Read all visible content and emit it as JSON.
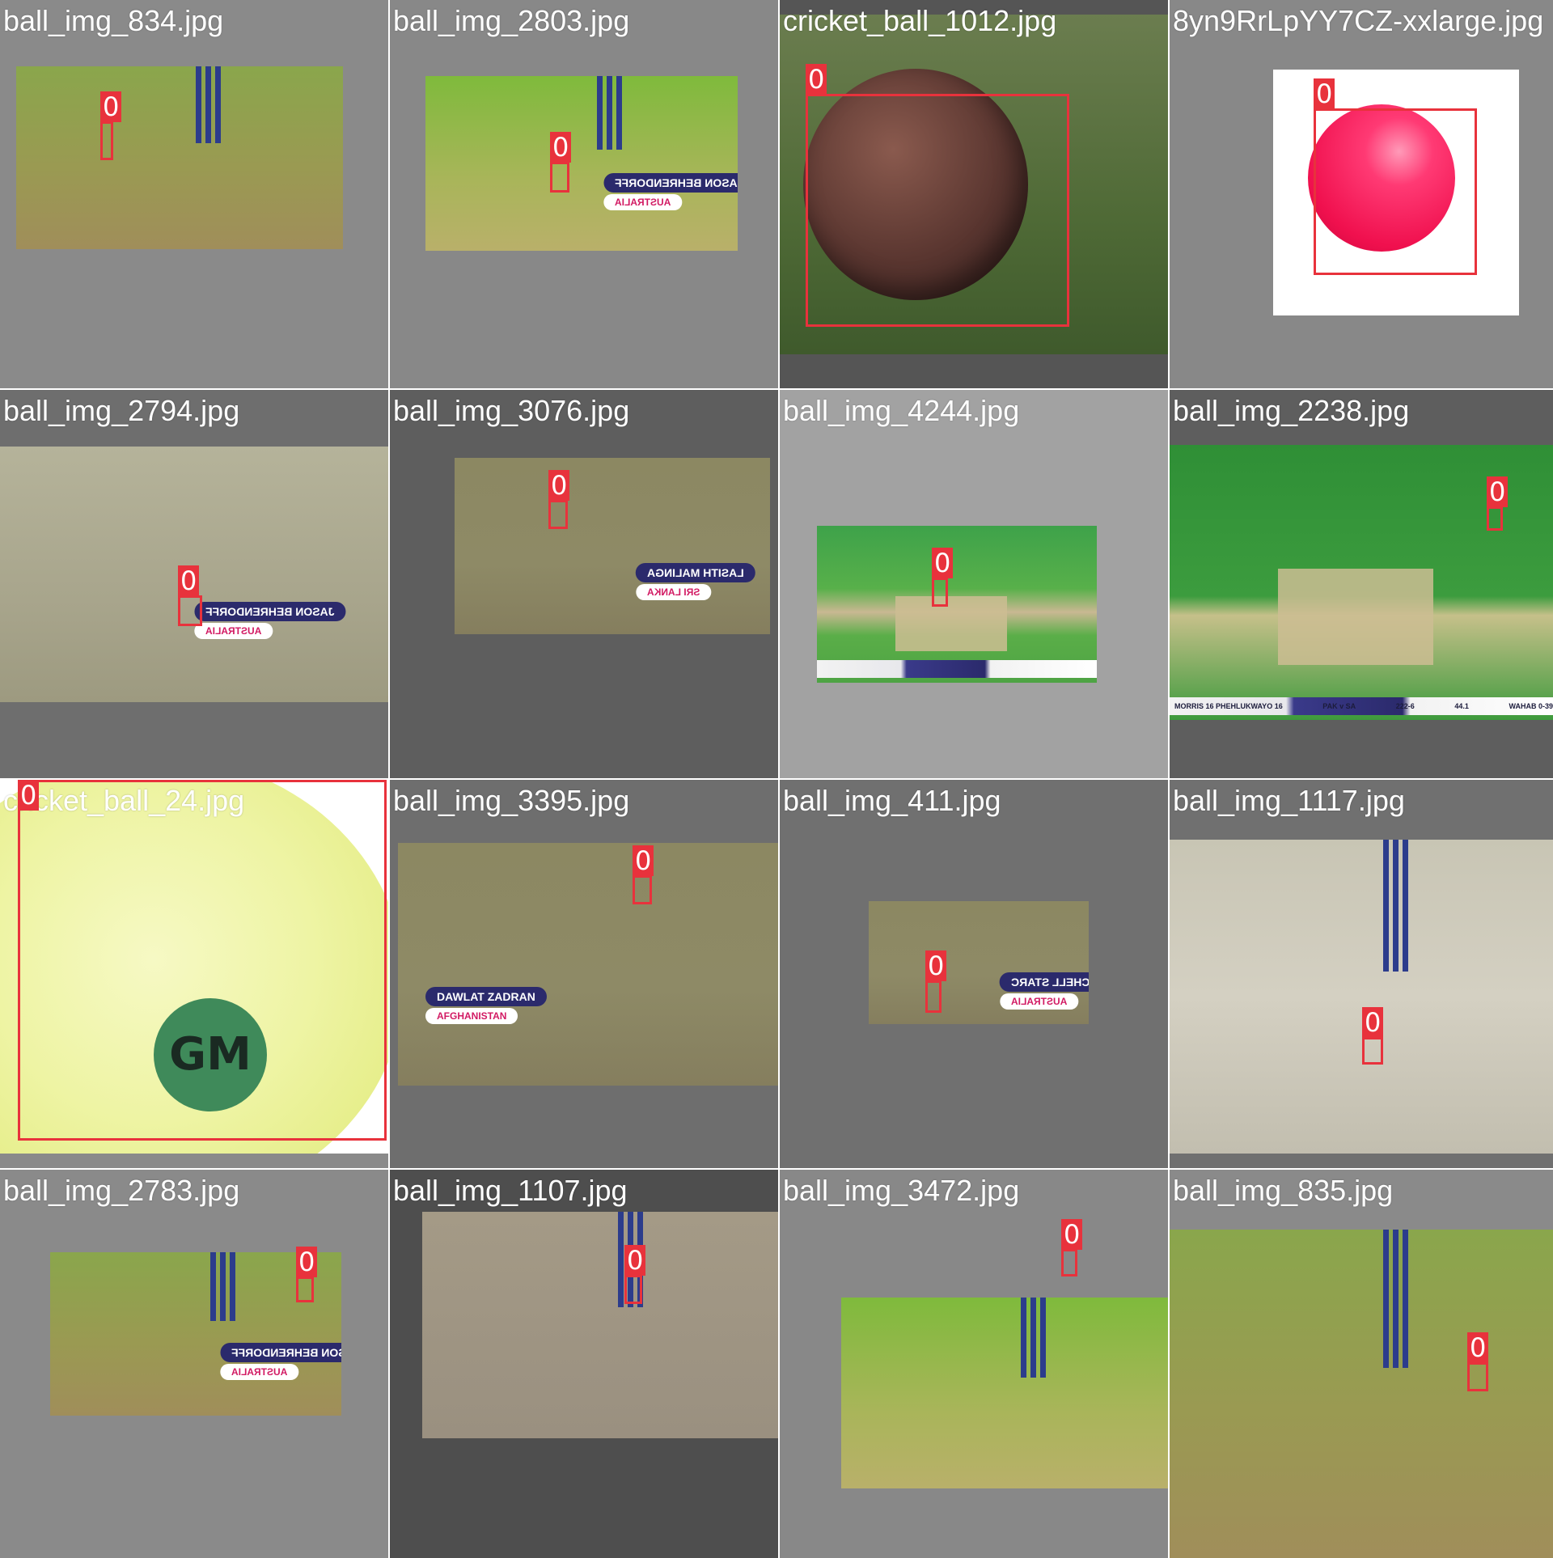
{
  "colors": {
    "bbox": "#e8323c",
    "bbox_text": "#ffffff",
    "filename_text": "#ffffff",
    "pitch_green": "#7fa342",
    "grass_green": "#3f8f3a",
    "label_navy": "#2b2a6c",
    "label_pink": "#d21a63"
  },
  "tiles": [
    {
      "filename": "ball_img_834.jpg",
      "bg": "#8a8a8a",
      "scene": "pitch",
      "boxes": [
        {
          "label": "0"
        }
      ]
    },
    {
      "filename": "ball_img_2803.jpg",
      "bg": "#888888",
      "scene": "pitch-bright",
      "boxes": [
        {
          "label": "0"
        }
      ],
      "player_label": {
        "name": "JASON BEHRENDORFF",
        "country": "AUSTRALIA",
        "mirrored": true
      }
    },
    {
      "filename": "cricket_ball_1012.jpg",
      "bg": "#555555",
      "scene": "leather-ball",
      "boxes": [
        {
          "label": "0"
        }
      ]
    },
    {
      "filename": "8yn9RrLpYY7CZ-xxlarge.jpg",
      "bg": "#888888",
      "scene": "pink-ball",
      "boxes": [
        {
          "label": "0"
        }
      ]
    },
    {
      "filename": "ball_img_2794.jpg",
      "bg": "#6e6e6e",
      "scene": "pitch-pale",
      "boxes": [
        {
          "label": "0"
        }
      ],
      "player_label": {
        "name": "JASON BEHRENDORFF",
        "country": "AUSTRALIA",
        "mirrored": true
      }
    },
    {
      "filename": "ball_img_3076.jpg",
      "bg": "#5e5e5e",
      "scene": "pitch-dull",
      "boxes": [
        {
          "label": "0"
        }
      ],
      "player_label": {
        "name": "LASITH MALINGA",
        "country": "SRI LANKA",
        "mirrored": true
      }
    },
    {
      "filename": "ball_img_4244.jpg",
      "bg": "#a2a2a2",
      "scene": "broadcast",
      "boxes": [
        {
          "label": "0"
        }
      ]
    },
    {
      "filename": "ball_img_2238.jpg",
      "bg": "#5e5e5e",
      "scene": "broadcast-wide",
      "boxes": [
        {
          "label": "0"
        }
      ],
      "scoreboard": {
        "left": "MORRIS 16 PHEHLUKWAYO 16",
        "teams": "PAK v SA",
        "score": "222-6",
        "over": "44.1",
        "bowler": "WAHAB 0-39"
      }
    },
    {
      "filename": "cricket_ball_24.jpg",
      "bg": "#8a8a8a",
      "scene": "tennis-ball",
      "boxes": [
        {
          "label": "0"
        }
      ],
      "logo": "GM"
    },
    {
      "filename": "ball_img_3395.jpg",
      "bg": "#6e6e6e",
      "scene": "pitch-dull",
      "boxes": [
        {
          "label": "0"
        }
      ],
      "player_label": {
        "name": "DAWLAT ZADRAN",
        "country": "AFGHANISTAN",
        "mirrored": false
      }
    },
    {
      "filename": "ball_img_411.jpg",
      "bg": "#707070",
      "scene": "pitch-dull",
      "boxes": [
        {
          "label": "0"
        }
      ],
      "player_label": {
        "name": "MITCHELL STARC",
        "country": "AUSTRALIA",
        "mirrored": true
      }
    },
    {
      "filename": "ball_img_1117.jpg",
      "bg": "#707070",
      "scene": "dusty",
      "boxes": [
        {
          "label": "0"
        }
      ]
    },
    {
      "filename": "ball_img_2783.jpg",
      "bg": "#8a8a8a",
      "scene": "pitch",
      "boxes": [
        {
          "label": "0"
        }
      ],
      "player_label": {
        "name": "JASON BEHRENDORFF",
        "country": "AUSTRALIA",
        "mirrored": true
      }
    },
    {
      "filename": "ball_img_1107.jpg",
      "bg": "#4e4e4e",
      "scene": "dusty-dark",
      "boxes": [
        {
          "label": "0"
        }
      ]
    },
    {
      "filename": "ball_img_3472.jpg",
      "bg": "#888888",
      "scene": "pitch-bright",
      "boxes": [
        {
          "label": "0"
        }
      ]
    },
    {
      "filename": "ball_img_835.jpg",
      "bg": "#8a8a8a",
      "scene": "pitch",
      "boxes": [
        {
          "label": "0"
        }
      ]
    }
  ]
}
